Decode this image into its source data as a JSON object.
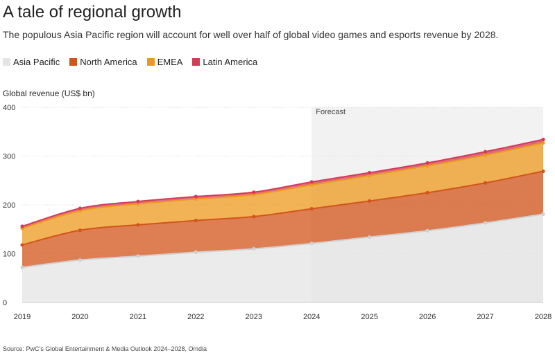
{
  "title": "A tale of regional growth",
  "subtitle": "The populous Asia Pacific region will account for well over half of global video games and esports revenue by 2028.",
  "source": "Source: PwC’s Global Entertainment & Media Outlook 2024–2028, Omdia",
  "colors": {
    "Asia Pacific": "#e4e4e4",
    "North America": "#d2541a",
    "EMEA": "#ec9a1d",
    "Latin America": "#d63a57"
  },
  "chart_data": {
    "type": "area",
    "stacked": true,
    "title": "A tale of regional growth",
    "ylabel": "Global revenue (US$ bn)",
    "xlabel": "",
    "ylim": [
      0,
      400
    ],
    "yticks": [
      0,
      100,
      200,
      300,
      400
    ],
    "x": [
      "2019",
      "2020",
      "2021",
      "2022",
      "2023",
      "2024",
      "2025",
      "2026",
      "2027",
      "2028"
    ],
    "forecast_start": "2024",
    "forecast_label": "Forecast",
    "legend_position": "top-left",
    "grid": true,
    "series": [
      {
        "name": "Asia Pacific",
        "values": [
          72,
          87,
          95,
          103,
          110,
          121,
          134,
          147,
          163,
          181
        ]
      },
      {
        "name": "North America",
        "values": [
          46,
          61,
          64,
          65,
          66,
          71,
          74,
          78,
          82,
          88
        ]
      },
      {
        "name": "EMEA",
        "values": [
          34,
          40,
          43,
          44,
          45,
          49,
          52,
          55,
          57,
          58
        ]
      },
      {
        "name": "Latin America",
        "values": [
          4,
          5,
          5,
          5,
          5,
          6,
          6,
          6,
          7,
          7
        ]
      }
    ]
  }
}
